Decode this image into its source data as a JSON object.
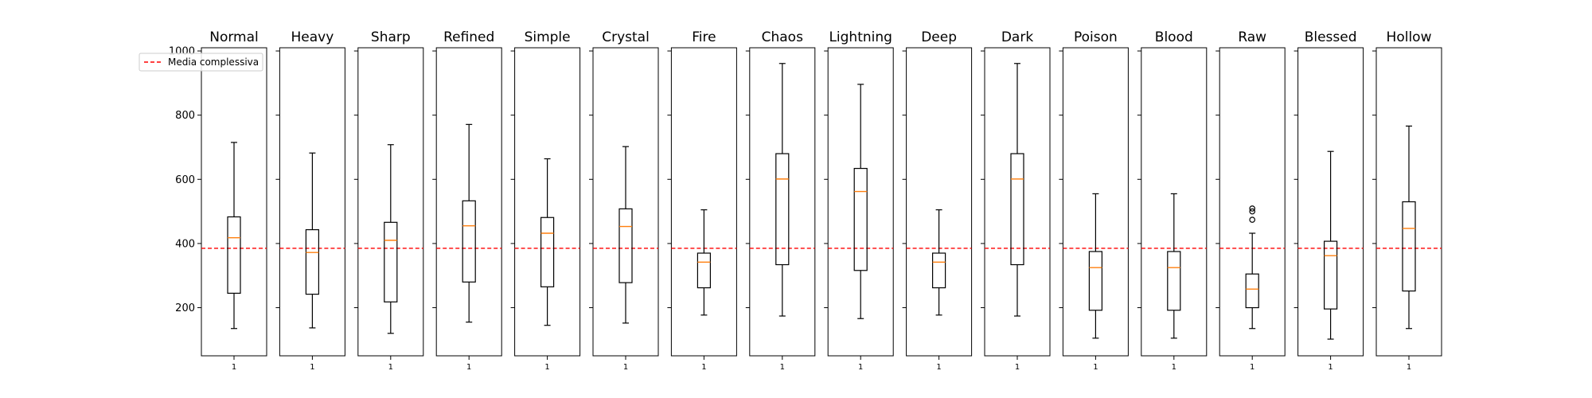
{
  "chart_data": {
    "type": "box",
    "ylim": [
      50,
      1010
    ],
    "yticks": [
      200,
      400,
      600,
      800,
      1000
    ],
    "xtick_label": "1",
    "mean_line": {
      "label": "Media complessiva",
      "value": 385,
      "color": "#ff0000"
    },
    "legend_position": "upper-left",
    "colors": {
      "box": "#000000",
      "median": "#ff7f0e",
      "mean_line": "#ff0000"
    },
    "panels": [
      {
        "title": "Normal",
        "whisker_low": 135,
        "q1": 245,
        "median": 418,
        "q3": 483,
        "whisker_high": 715,
        "outliers": []
      },
      {
        "title": "Heavy",
        "whisker_low": 137,
        "q1": 242,
        "median": 372,
        "q3": 443,
        "whisker_high": 682,
        "outliers": []
      },
      {
        "title": "Sharp",
        "whisker_low": 120,
        "q1": 218,
        "median": 410,
        "q3": 466,
        "whisker_high": 708,
        "outliers": []
      },
      {
        "title": "Refined",
        "whisker_low": 155,
        "q1": 280,
        "median": 455,
        "q3": 533,
        "whisker_high": 771,
        "outliers": []
      },
      {
        "title": "Simple",
        "whisker_low": 145,
        "q1": 265,
        "median": 432,
        "q3": 481,
        "whisker_high": 664,
        "outliers": []
      },
      {
        "title": "Crystal",
        "whisker_low": 152,
        "q1": 278,
        "median": 453,
        "q3": 508,
        "whisker_high": 702,
        "outliers": []
      },
      {
        "title": "Fire",
        "whisker_low": 177,
        "q1": 262,
        "median": 342,
        "q3": 370,
        "whisker_high": 505,
        "outliers": []
      },
      {
        "title": "Chaos",
        "whisker_low": 174,
        "q1": 334,
        "median": 601,
        "q3": 680,
        "whisker_high": 961,
        "outliers": []
      },
      {
        "title": "Lightning",
        "whisker_low": 166,
        "q1": 316,
        "median": 562,
        "q3": 634,
        "whisker_high": 896,
        "outliers": []
      },
      {
        "title": "Deep",
        "whisker_low": 177,
        "q1": 262,
        "median": 342,
        "q3": 370,
        "whisker_high": 505,
        "outliers": []
      },
      {
        "title": "Dark",
        "whisker_low": 174,
        "q1": 334,
        "median": 601,
        "q3": 680,
        "whisker_high": 961,
        "outliers": []
      },
      {
        "title": "Poison",
        "whisker_low": 105,
        "q1": 192,
        "median": 325,
        "q3": 375,
        "whisker_high": 555,
        "outliers": []
      },
      {
        "title": "Blood",
        "whisker_low": 105,
        "q1": 192,
        "median": 325,
        "q3": 375,
        "whisker_high": 555,
        "outliers": []
      },
      {
        "title": "Raw",
        "whisker_low": 135,
        "q1": 200,
        "median": 258,
        "q3": 305,
        "whisker_high": 432,
        "outliers": [
          474,
          500,
          509
        ]
      },
      {
        "title": "Blessed",
        "whisker_low": 102,
        "q1": 196,
        "median": 362,
        "q3": 407,
        "whisker_high": 687,
        "outliers": []
      },
      {
        "title": "Hollow",
        "whisker_low": 135,
        "q1": 252,
        "median": 447,
        "q3": 530,
        "whisker_high": 766,
        "outliers": []
      }
    ]
  }
}
